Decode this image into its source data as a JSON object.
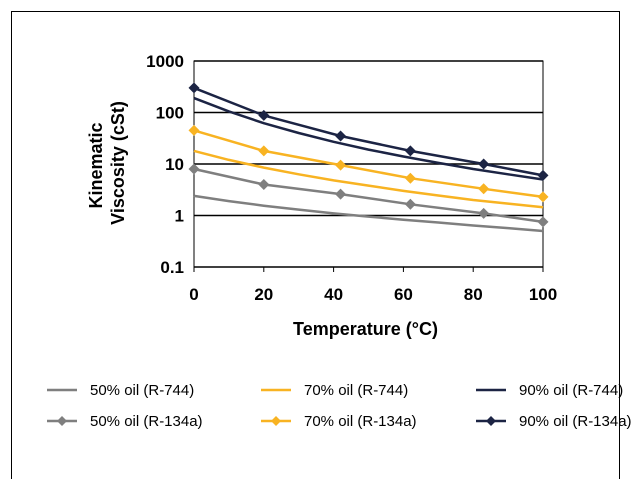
{
  "chart_data": {
    "type": "line",
    "title": "",
    "xlabel": "Temperature (°C)",
    "ylabel": "Kinematic Viscosity (cSt)",
    "ylabel_lines": [
      "Kinematic",
      "Viscosity (cSt)"
    ],
    "x_scale": "linear",
    "y_scale": "log",
    "xlim": [
      0,
      100
    ],
    "ylim": [
      0.1,
      1000
    ],
    "x_ticks": [
      "0",
      "20",
      "40",
      "60",
      "80",
      "100"
    ],
    "y_ticks": [
      "0.1",
      "1",
      "10",
      "100",
      "1000"
    ],
    "grid": "horizontal major gridlines",
    "legend_position": "bottom",
    "series": [
      {
        "name": "50% oil (R-744)",
        "color": "#7f7f7f",
        "marker": "none",
        "x": [
          0,
          10,
          20,
          30,
          40,
          50,
          60,
          70,
          80,
          90,
          100
        ],
        "y": [
          2.4,
          1.9,
          1.55,
          1.3,
          1.1,
          0.95,
          0.83,
          0.73,
          0.64,
          0.57,
          0.5
        ]
      },
      {
        "name": "70% oil (R-744)",
        "color": "#f8b322",
        "marker": "none",
        "x": [
          0,
          10,
          20,
          30,
          40,
          50,
          60,
          70,
          80,
          90,
          100
        ],
        "y": [
          18,
          12,
          8.5,
          6.3,
          4.8,
          3.8,
          3.0,
          2.45,
          2.0,
          1.7,
          1.45
        ]
      },
      {
        "name": "90% oil (R-744)",
        "color": "#1c2444",
        "marker": "none",
        "x": [
          0,
          10,
          20,
          30,
          40,
          50,
          60,
          70,
          80,
          90,
          100
        ],
        "y": [
          190,
          105,
          62,
          40,
          27,
          19,
          14,
          10.5,
          8.0,
          6.3,
          5.0
        ]
      },
      {
        "name": "50% oil (R-134a)",
        "color": "#7f7f7f",
        "marker": "diamond",
        "x": [
          0,
          20,
          42,
          62,
          83,
          100
        ],
        "y": [
          8.0,
          4.0,
          2.6,
          1.65,
          1.1,
          0.75
        ]
      },
      {
        "name": "70% oil (R-134a)",
        "color": "#f8b322",
        "marker": "diamond",
        "x": [
          0,
          20,
          42,
          62,
          83,
          100
        ],
        "y": [
          45,
          18,
          9.5,
          5.3,
          3.3,
          2.3
        ]
      },
      {
        "name": "90% oil (R-134a)",
        "color": "#1c2444",
        "marker": "diamond",
        "x": [
          0,
          20,
          42,
          62,
          83,
          100
        ],
        "y": [
          300,
          88,
          35,
          18,
          10,
          6.0
        ]
      }
    ]
  }
}
